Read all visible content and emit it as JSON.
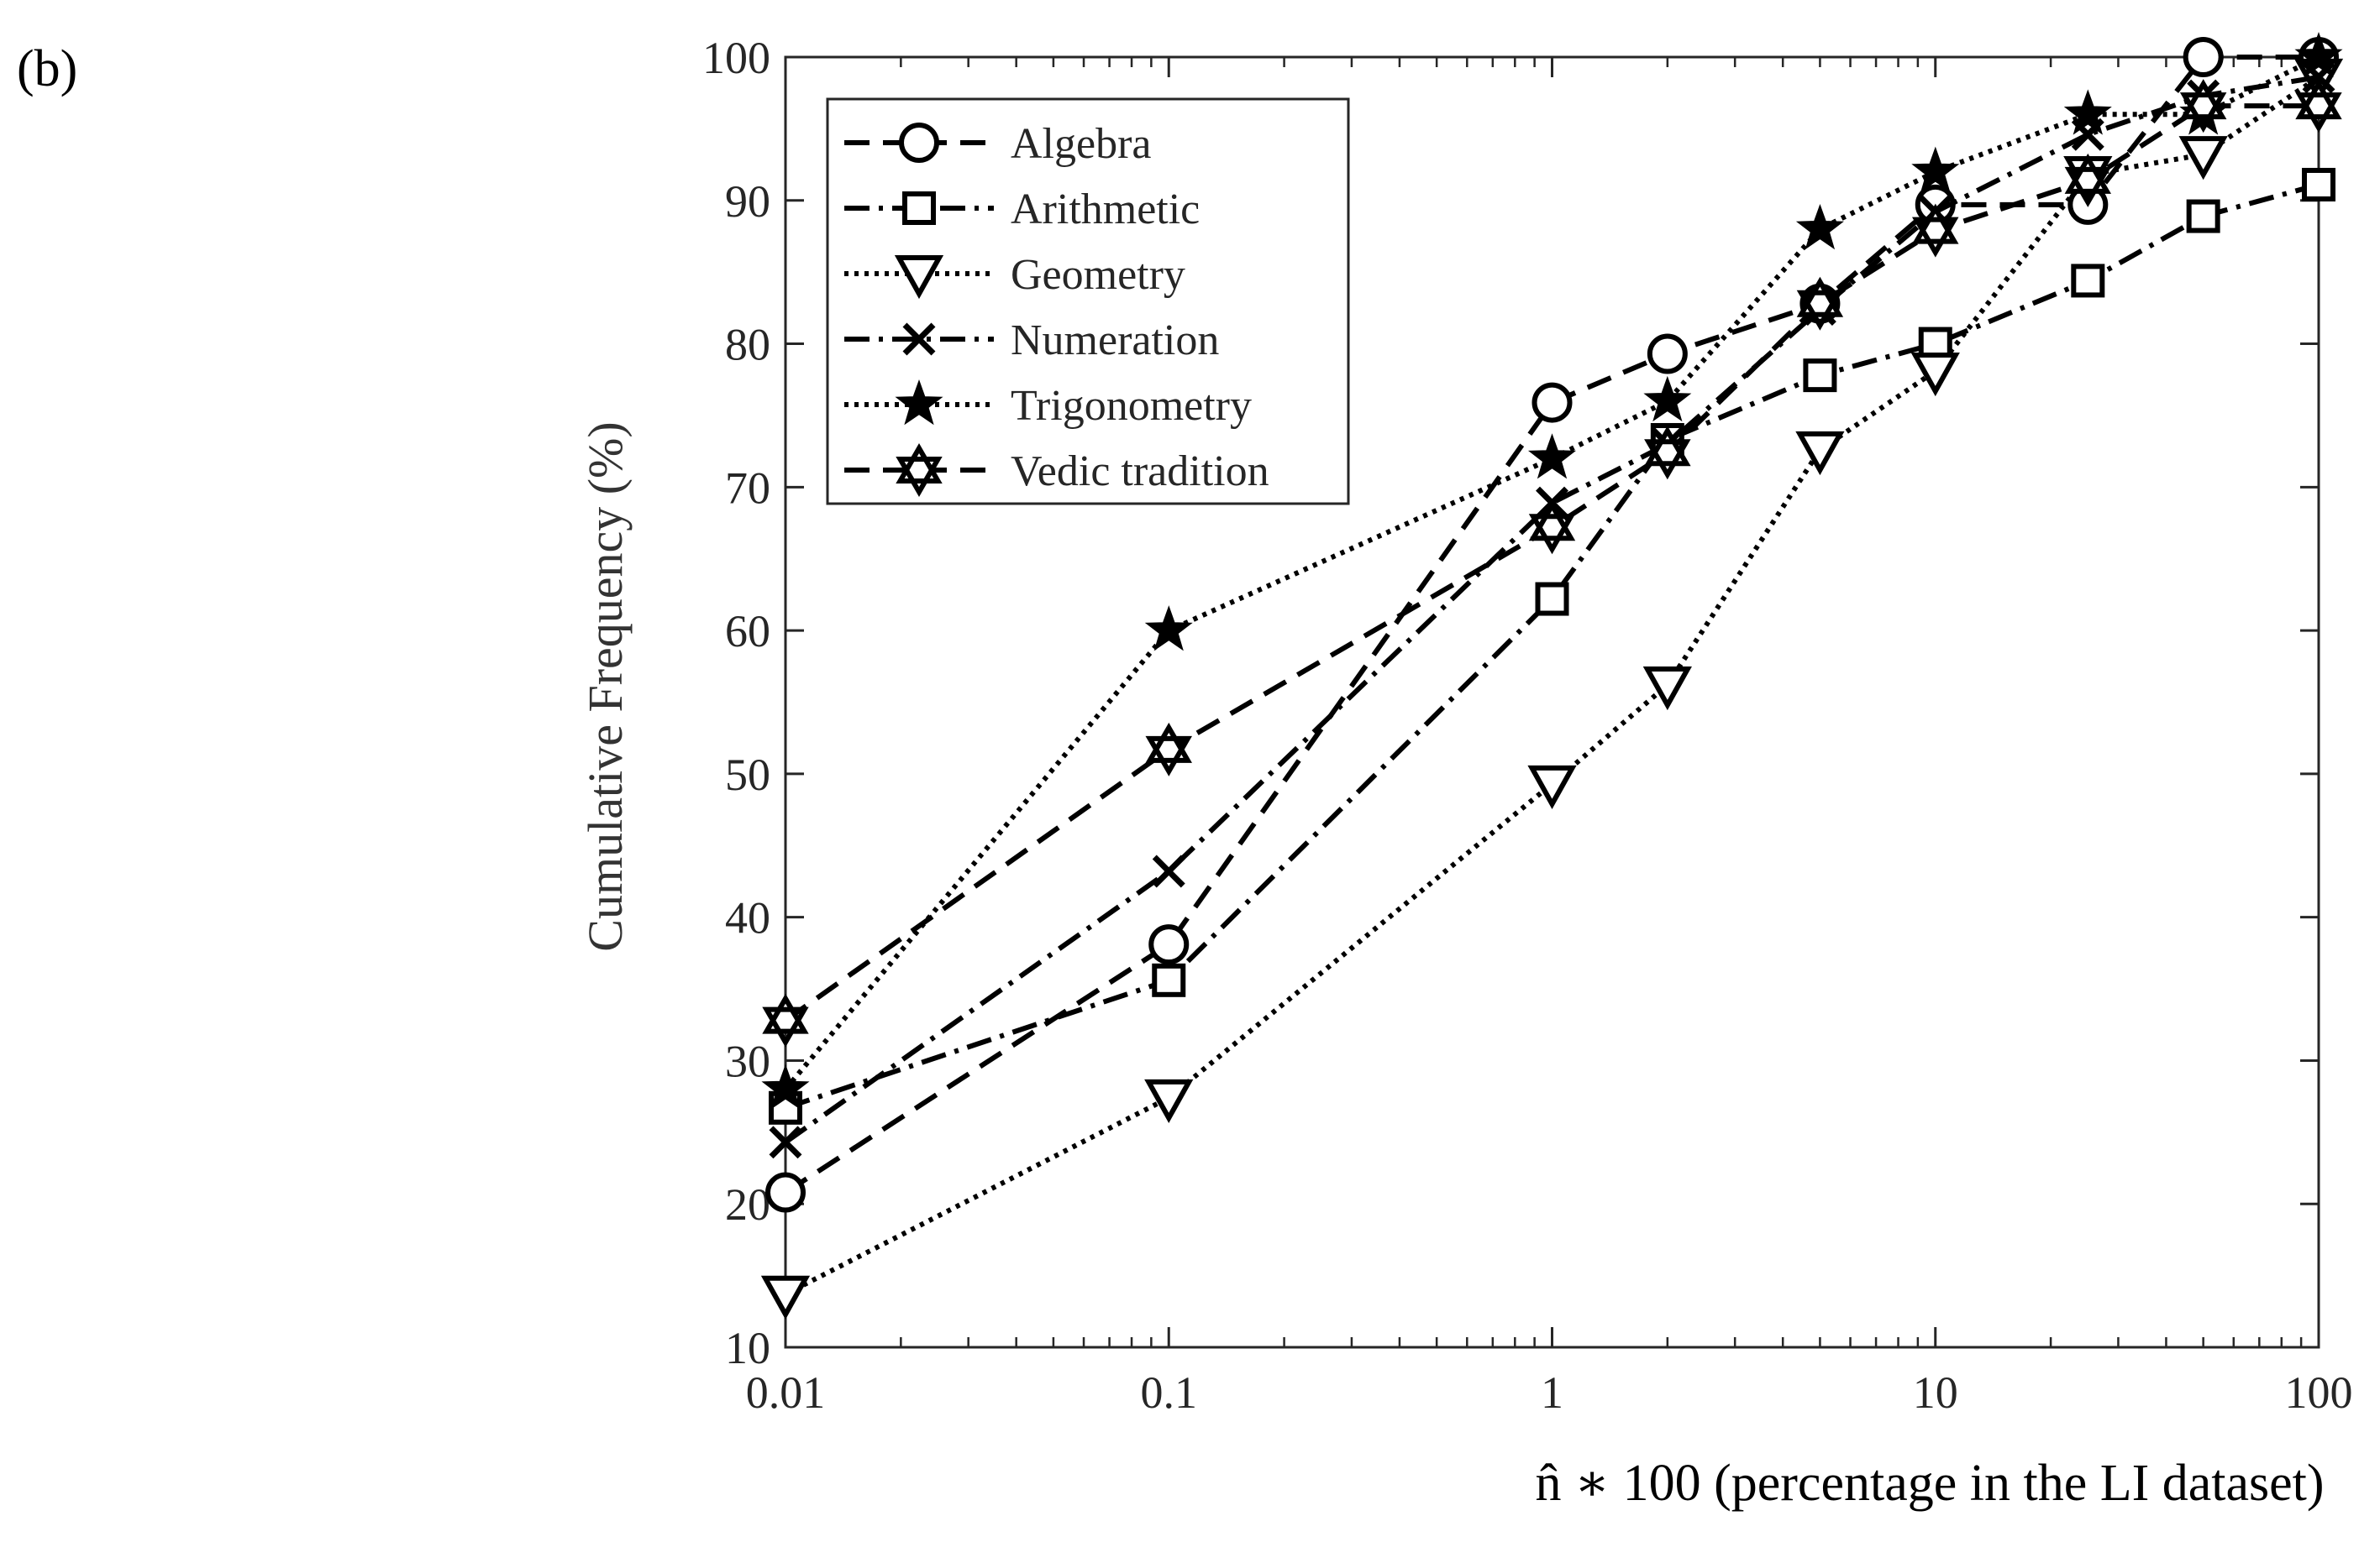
{
  "panel_label": "(b)",
  "chart_data": {
    "type": "line",
    "title": "",
    "xlabel": "n̂ ∗ 100 (percentage in the LI dataset)",
    "ylabel": "Cumulative Frequency (%)",
    "x_scale": "log",
    "xlim": [
      0.01,
      100
    ],
    "ylim": [
      10,
      100
    ],
    "x_ticks": [
      0.01,
      0.1,
      1,
      10,
      100
    ],
    "x_tick_labels": [
      "0.01",
      "0.1",
      "1",
      "10",
      "100"
    ],
    "y_ticks": [
      10,
      20,
      30,
      40,
      50,
      60,
      70,
      80,
      90,
      100
    ],
    "y_tick_labels": [
      "10",
      "20",
      "30",
      "40",
      "50",
      "60",
      "70",
      "80",
      "90",
      "100"
    ],
    "grid": false,
    "legend_position": "top-left",
    "x": [
      0.01,
      0.1,
      1,
      2,
      5,
      10,
      25,
      50,
      100
    ],
    "series": [
      {
        "name": "Algebra",
        "marker": "circle",
        "linestyle": "dashed",
        "color": "#000000",
        "values": [
          20.8,
          38.1,
          75.9,
          79.3,
          82.8,
          89.7,
          89.7,
          100,
          100
        ]
      },
      {
        "name": "Arithmetic",
        "marker": "square",
        "linestyle": "dashdot",
        "color": "#000000",
        "values": [
          26.7,
          35.6,
          62.2,
          73.3,
          77.8,
          80.0,
          84.4,
          88.9,
          91.1
        ]
      },
      {
        "name": "Geometry",
        "marker": "triangle-down",
        "linestyle": "dotted",
        "color": "#000000",
        "values": [
          13.7,
          27.4,
          49.3,
          56.2,
          72.6,
          78.1,
          91.8,
          93.2,
          98.6
        ]
      },
      {
        "name": "Numeration",
        "marker": "x",
        "linestyle": "dashdot",
        "color": "#000000",
        "values": [
          24.3,
          43.2,
          68.9,
          73.0,
          82.4,
          89.2,
          94.6,
          97.3,
          98.6
        ]
      },
      {
        "name": "Trigonometry",
        "marker": "star-filled",
        "linestyle": "dotted",
        "color": "#000000",
        "values": [
          28.0,
          60.0,
          72.0,
          76.0,
          88.0,
          92.0,
          96.0,
          96.0,
          100
        ]
      },
      {
        "name": "Vedic tradition",
        "marker": "hexagram",
        "linestyle": "dashed",
        "color": "#000000",
        "values": [
          32.8,
          51.7,
          67.2,
          72.4,
          82.8,
          87.9,
          91.4,
          96.6,
          96.6
        ]
      }
    ]
  }
}
